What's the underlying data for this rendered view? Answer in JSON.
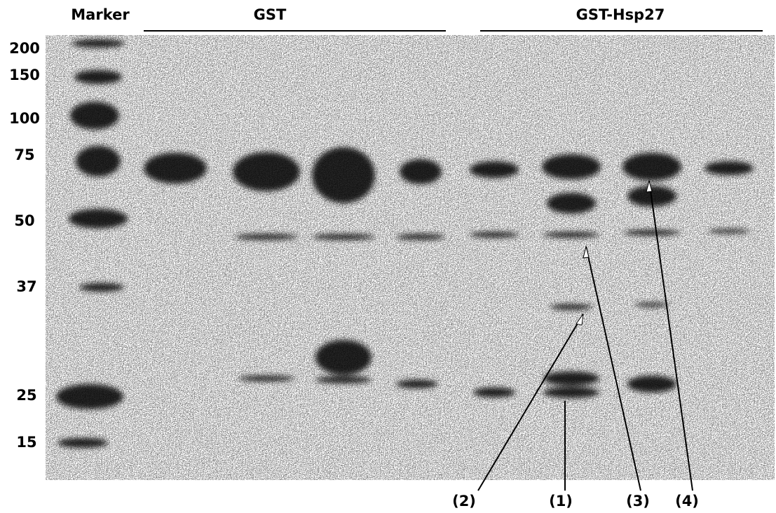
{
  "header": {
    "marker": "Marker",
    "gst": "GST",
    "gst_hsp27": "GST-Hsp27"
  },
  "marker_labels": [
    "200",
    "150",
    "100",
    "75",
    "50",
    "37",
    "25",
    "15"
  ],
  "annotations": [
    "(2)",
    "(1)",
    "(3)",
    "(4)"
  ]
}
